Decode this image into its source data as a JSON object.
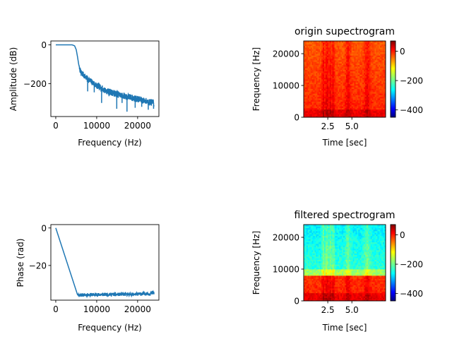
{
  "colors": {
    "line": "#1f77b4",
    "axes": "#000000",
    "background": "#ffffff",
    "colormap": "jet"
  },
  "chart_data": [
    {
      "id": "amp",
      "type": "line",
      "title": "",
      "xlabel": "Frequency (Hz)",
      "ylabel": "Amplitude (dB)",
      "xlim": [
        -1200,
        25200
      ],
      "ylim": [
        -370,
        20
      ],
      "xticks": [
        0,
        10000,
        20000
      ],
      "xtick_labels": [
        "0",
        "10000",
        "20000"
      ],
      "yticks": [
        0,
        -200
      ],
      "ytick_labels": [
        "0",
        "−200"
      ],
      "series": [
        {
          "x": [
            0,
            4000,
            4600,
            5000,
            5300,
            5600,
            5900,
            6500,
            8000,
            10000,
            12000,
            15000,
            18000,
            21000,
            24000
          ],
          "y": [
            0,
            0,
            -5,
            -25,
            -60,
            -100,
            -130,
            -150,
            -180,
            -210,
            -235,
            -255,
            -270,
            -285,
            -300
          ],
          "noise": [
            0,
            0,
            0,
            0,
            0,
            0,
            10,
            14,
            16,
            17,
            17,
            17,
            17,
            17,
            17
          ]
        }
      ],
      "dips": [
        {
          "x": 6200,
          "y": -160
        },
        {
          "x": 7800,
          "y": -240
        },
        {
          "x": 9400,
          "y": -245
        },
        {
          "x": 11200,
          "y": -300
        },
        {
          "x": 13000,
          "y": -265
        },
        {
          "x": 14900,
          "y": -330
        },
        {
          "x": 16200,
          "y": -300
        },
        {
          "x": 17400,
          "y": -345
        },
        {
          "x": 19400,
          "y": -325
        },
        {
          "x": 21000,
          "y": -320
        },
        {
          "x": 22600,
          "y": -335
        },
        {
          "x": 23900,
          "y": -330
        }
      ]
    },
    {
      "id": "phase",
      "type": "line",
      "title": "",
      "xlabel": "Frequency (Hz)",
      "ylabel": "Phase (rad)",
      "xlim": [
        -1200,
        25200
      ],
      "ylim": [
        -38.5,
        1.8
      ],
      "xticks": [
        0,
        10000,
        20000
      ],
      "xtick_labels": [
        "0",
        "10000",
        "20000"
      ],
      "yticks": [
        0,
        -20
      ],
      "ytick_labels": [
        "0",
        "−20"
      ],
      "series": [
        {
          "x": [
            0,
            5300,
            5600,
            8000,
            12000,
            16000,
            20000,
            23000,
            24000
          ],
          "y": [
            0,
            -35.5,
            -35.8,
            -35.6,
            -35.5,
            -35.4,
            -35.3,
            -35.0,
            -34.5
          ],
          "noise": [
            0,
            0,
            0.9,
            0.9,
            0.9,
            0.9,
            0.9,
            0.9,
            1.2
          ]
        }
      ]
    },
    {
      "id": "origin",
      "type": "heatmap",
      "title": "origin supectrogram",
      "xlabel": "Time [sec]",
      "ylabel": "Frequency [Hz]",
      "xlim": [
        0,
        8.5
      ],
      "ylim": [
        0,
        24000
      ],
      "xticks": [
        2.5,
        5.0
      ],
      "xtick_labels": [
        "2.5",
        "5.0"
      ],
      "yticks": [
        0,
        10000,
        20000
      ],
      "ytick_labels": [
        "0",
        "10000",
        "20000"
      ],
      "filtered": false,
      "colorbar": {
        "vmin": -450,
        "vmax": 70,
        "ticks": [
          0,
          -200,
          -400
        ],
        "tick_labels": [
          "0",
          "−200",
          "−400"
        ]
      }
    },
    {
      "id": "filtered",
      "type": "heatmap",
      "title": "filtered spectrogram",
      "xlabel": "Time [sec]",
      "ylabel": "Frequency [Hz]",
      "xlim": [
        0,
        8.5
      ],
      "ylim": [
        0,
        24000
      ],
      "xticks": [
        2.5,
        5.0
      ],
      "xtick_labels": [
        "2.5",
        "5.0"
      ],
      "yticks": [
        0,
        10000,
        20000
      ],
      "ytick_labels": [
        "0",
        "10000",
        "20000"
      ],
      "filtered": true,
      "cutoff_hz": 8000,
      "colorbar": {
        "vmin": -450,
        "vmax": 70,
        "ticks": [
          0,
          -200,
          -400
        ],
        "tick_labels": [
          "0",
          "−200",
          "−400"
        ]
      }
    }
  ]
}
